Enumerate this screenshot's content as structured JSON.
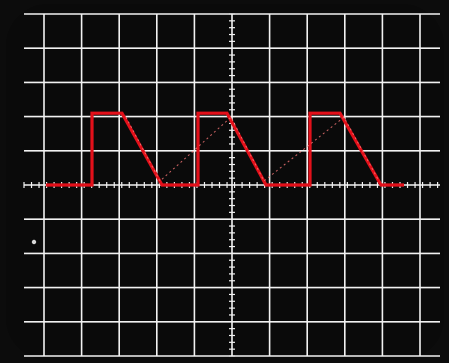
{
  "scope": {
    "colors": {
      "bezel": "#0c0c0c",
      "screen": "#0a0a0a",
      "grid": "#f2f2f2",
      "trace": "#e3101a",
      "trace_glint": "#ff7a7a",
      "index_dot": "#d9d9d9"
    },
    "graticule": {
      "divisions_x": 10,
      "divisions_y": 10,
      "center_axis_minor_ticks": true
    },
    "trace": {
      "waveform": "square-with-ramp-down",
      "cycles_visible": 3,
      "baseline_division": 5.0,
      "high_division": 2.9
    },
    "icons": {
      "index_mark": "dot-icon"
    }
  }
}
